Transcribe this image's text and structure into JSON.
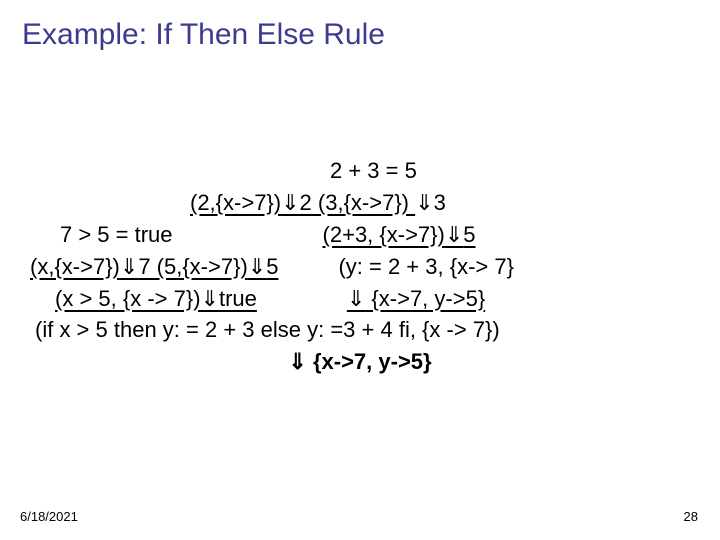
{
  "title": "Example: If Then Else Rule",
  "lines": {
    "l1": "2 + 3 = 5",
    "l2a": "(2,{x->7})",
    "l2b": "2    (3,{x->7}) ",
    "l2c": "3",
    "l3a": "7 > 5 = true",
    "l3b": "(2+3, {x->7})",
    "l3c": "5",
    "l4a": "(x,{x->7})",
    "l4b": "7   (5,{x->7})",
    "l4c": "5",
    "l4d": "(y: = 2 + 3, {x-> 7}",
    "l5a": "(x > 5, {x -> 7})",
    "l5b": "true",
    "l5c": " {x->7, y->5}",
    "l6": "(if x > 5 then y: = 2 + 3 else y: =3 + 4 fi, {x -> 7})",
    "l7": " {x->7, y->5}"
  },
  "arrow": "⇓",
  "footer": {
    "date": "6/18/2021",
    "page": "28"
  },
  "colors": {
    "title": "#3b3b8f",
    "text": "#000000",
    "bg": "#ffffff"
  },
  "fontsize": {
    "title": 30,
    "body": 22,
    "footer": 13
  }
}
